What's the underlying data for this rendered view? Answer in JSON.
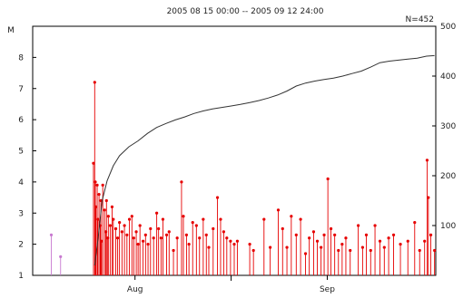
{
  "chart_data": {
    "type": "scatter",
    "title": "",
    "subtitle": "2005 08 15 00:00 -- 2005 09 12 24:00",
    "count_label": "N=452",
    "left_axis": {
      "label": "M",
      "ylim": [
        1,
        9
      ],
      "ticks": [
        "1",
        "2",
        "3",
        "4",
        "5",
        "6",
        "7",
        "8"
      ]
    },
    "right_axis": {
      "ylim": [
        0,
        500
      ],
      "ticks": [
        "100",
        "200",
        "300",
        "400",
        "500"
      ]
    },
    "x_axis": {
      "domain": [
        "2005-08-15 00:00",
        "2005-09-12 24:00"
      ],
      "ticks": [
        {
          "label": "Aug",
          "day": 16.5
        },
        {
          "label": "Sep",
          "day": 47.5
        }
      ],
      "minor_ticks_day": [
        32
      ]
    },
    "cumulative_series": [
      [
        10.0,
        20
      ],
      [
        10.6,
        80
      ],
      [
        11.2,
        150
      ],
      [
        12.0,
        190
      ],
      [
        13.0,
        220
      ],
      [
        14.0,
        240
      ],
      [
        15.5,
        258
      ],
      [
        17.0,
        270
      ],
      [
        18.5,
        285
      ],
      [
        20.0,
        297
      ],
      [
        21.5,
        305
      ],
      [
        23.0,
        312
      ],
      [
        24.5,
        318
      ],
      [
        26.0,
        325
      ],
      [
        27.5,
        330
      ],
      [
        29.0,
        334
      ],
      [
        30.5,
        337
      ],
      [
        32.0,
        340
      ],
      [
        33.5,
        343
      ],
      [
        35.0,
        347
      ],
      [
        36.5,
        351
      ],
      [
        38.0,
        356
      ],
      [
        39.5,
        362
      ],
      [
        41.0,
        370
      ],
      [
        42.5,
        380
      ],
      [
        44.0,
        386
      ],
      [
        45.5,
        390
      ],
      [
        47.0,
        393
      ],
      [
        48.5,
        396
      ],
      [
        50.0,
        400
      ],
      [
        51.5,
        405
      ],
      [
        53.0,
        410
      ],
      [
        54.5,
        418
      ],
      [
        56.0,
        427
      ],
      [
        57.5,
        430
      ],
      [
        59.0,
        432
      ],
      [
        60.5,
        434
      ],
      [
        62.0,
        436
      ],
      [
        63.5,
        440
      ],
      [
        64.8,
        441
      ]
    ],
    "events": [
      [
        3.0,
        2.3
      ],
      [
        4.5,
        1.6
      ],
      [
        10.0,
        7.2
      ],
      [
        9.8,
        4.6
      ],
      [
        10.1,
        4.0
      ],
      [
        10.4,
        3.9
      ],
      [
        10.2,
        3.2
      ],
      [
        10.7,
        3.6
      ],
      [
        11.0,
        3.4
      ],
      [
        10.5,
        2.8
      ],
      [
        10.9,
        2.6
      ],
      [
        11.3,
        3.9
      ],
      [
        11.6,
        3.1
      ],
      [
        11.9,
        3.4
      ],
      [
        12.2,
        2.9
      ],
      [
        12.5,
        2.6
      ],
      [
        12.8,
        3.2
      ],
      [
        11.1,
        2.1
      ],
      [
        11.8,
        2.4
      ],
      [
        12.1,
        2.2
      ],
      [
        13.0,
        2.8
      ],
      [
        13.4,
        2.5
      ],
      [
        13.7,
        2.2
      ],
      [
        14.0,
        2.7
      ],
      [
        14.4,
        2.4
      ],
      [
        14.8,
        2.6
      ],
      [
        15.2,
        2.3
      ],
      [
        15.6,
        2.8
      ],
      [
        16.0,
        2.9
      ],
      [
        16.3,
        2.2
      ],
      [
        16.7,
        2.4
      ],
      [
        17.0,
        2.0
      ],
      [
        17.3,
        2.6
      ],
      [
        17.8,
        2.1
      ],
      [
        18.2,
        2.3
      ],
      [
        18.6,
        2.0
      ],
      [
        19.0,
        2.5
      ],
      [
        19.5,
        2.2
      ],
      [
        20.0,
        3.0
      ],
      [
        20.3,
        2.5
      ],
      [
        20.7,
        2.2
      ],
      [
        21.0,
        2.8
      ],
      [
        21.6,
        2.3
      ],
      [
        22.0,
        2.4
      ],
      [
        22.7,
        1.8
      ],
      [
        23.3,
        2.2
      ],
      [
        24.0,
        4.0
      ],
      [
        24.3,
        2.9
      ],
      [
        24.8,
        2.3
      ],
      [
        25.2,
        2.0
      ],
      [
        25.8,
        2.7
      ],
      [
        26.4,
        2.6
      ],
      [
        26.9,
        2.2
      ],
      [
        27.5,
        2.8
      ],
      [
        28.0,
        2.3
      ],
      [
        28.4,
        1.9
      ],
      [
        29.1,
        2.5
      ],
      [
        29.8,
        3.5
      ],
      [
        30.3,
        2.8
      ],
      [
        30.8,
        2.4
      ],
      [
        31.3,
        2.2
      ],
      [
        31.9,
        2.1
      ],
      [
        32.5,
        2.0
      ],
      [
        33.0,
        2.1
      ],
      [
        35.0,
        2.0
      ],
      [
        35.6,
        1.8
      ],
      [
        37.3,
        2.8
      ],
      [
        38.3,
        1.9
      ],
      [
        39.6,
        3.1
      ],
      [
        40.3,
        2.5
      ],
      [
        41.0,
        1.9
      ],
      [
        41.7,
        2.9
      ],
      [
        42.5,
        2.3
      ],
      [
        43.2,
        2.8
      ],
      [
        44.0,
        1.7
      ],
      [
        44.6,
        2.2
      ],
      [
        45.3,
        2.4
      ],
      [
        45.9,
        2.1
      ],
      [
        46.5,
        1.9
      ],
      [
        47.0,
        2.3
      ],
      [
        47.6,
        4.1
      ],
      [
        48.1,
        2.5
      ],
      [
        48.7,
        2.3
      ],
      [
        49.3,
        1.8
      ],
      [
        49.9,
        2.0
      ],
      [
        50.5,
        2.2
      ],
      [
        51.2,
        1.8
      ],
      [
        52.5,
        2.6
      ],
      [
        53.2,
        1.9
      ],
      [
        53.8,
        2.3
      ],
      [
        54.5,
        1.8
      ],
      [
        55.2,
        2.6
      ],
      [
        56.0,
        2.1
      ],
      [
        56.7,
        1.9
      ],
      [
        57.4,
        2.2
      ],
      [
        58.2,
        2.3
      ],
      [
        59.3,
        2.0
      ],
      [
        60.5,
        2.1
      ],
      [
        61.6,
        2.7
      ],
      [
        62.4,
        1.8
      ],
      [
        63.2,
        2.1
      ],
      [
        63.6,
        4.7
      ],
      [
        63.8,
        3.5
      ],
      [
        64.2,
        2.3
      ],
      [
        64.8,
        1.8
      ]
    ],
    "event_colors": {
      "main": "#e60000",
      "early": "#c87ad0"
    },
    "line_color": "#333333"
  }
}
